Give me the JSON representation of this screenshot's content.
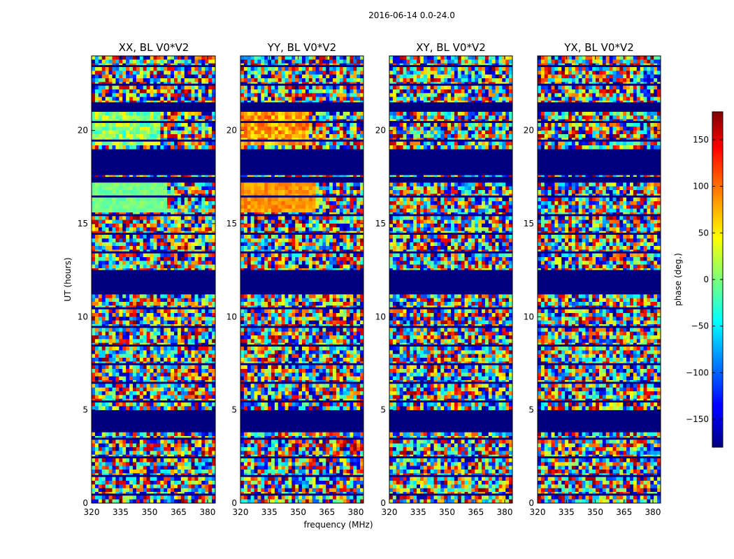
{
  "figure": {
    "suptitle": "2016-06-14 0.0-24.0"
  },
  "chart_data": {
    "type": "heatmap",
    "shared_xlabel": "frequency (MHz)",
    "shared_ylabel": "UT (hours)",
    "xlim": [
      320,
      384
    ],
    "ylim": [
      0,
      24
    ],
    "xticks": [
      320,
      335,
      350,
      365,
      380
    ],
    "yticks": [
      0,
      5,
      10,
      15,
      20
    ],
    "panels": [
      {
        "title": "XX, BL V0*V2",
        "show_ylabel": true,
        "show_xlabel": false
      },
      {
        "title": "YY, BL V0*V2",
        "show_ylabel": false,
        "show_xlabel": true
      },
      {
        "title": "XY, BL V0*V2",
        "show_ylabel": false,
        "show_xlabel": false
      },
      {
        "title": "YX, BL V0*V2",
        "show_ylabel": false,
        "show_xlabel": false
      }
    ],
    "masked_hours": [
      [
        0.0,
        0.1
      ],
      [
        3.8,
        4.0
      ],
      [
        4.0,
        4.9
      ],
      [
        11.3,
        12.5
      ],
      [
        17.2,
        17.4
      ],
      [
        17.6,
        19.0
      ],
      [
        21.0,
        21.5
      ]
    ],
    "colorbar": {
      "label": "phase (deg.)",
      "range": [
        -180,
        180
      ],
      "ticks": [
        150,
        100,
        50,
        0,
        -50,
        -100,
        -150
      ],
      "tick_labels": [
        "150",
        "100",
        "50",
        "0",
        "−50",
        "−100",
        "−150"
      ],
      "colormap": "jet"
    }
  }
}
